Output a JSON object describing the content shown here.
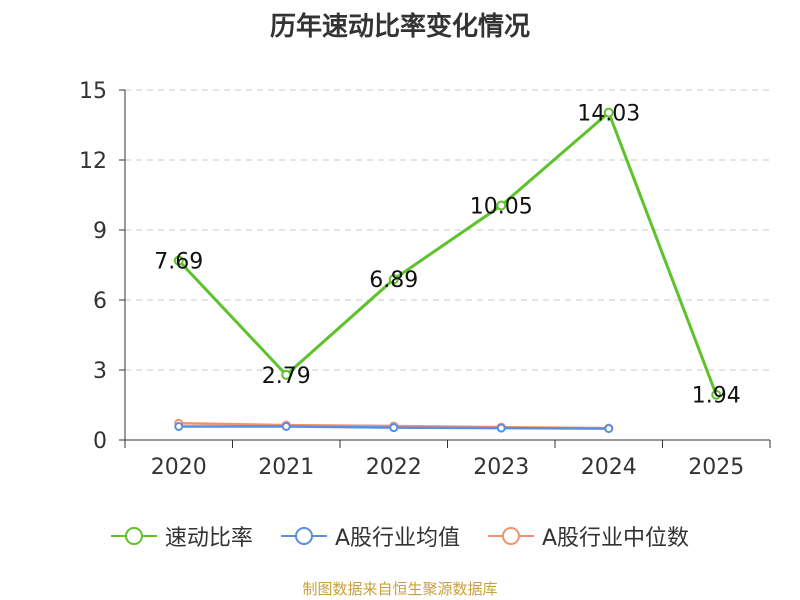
{
  "chart_data": {
    "type": "line",
    "title": "历年速动比率变化情况",
    "categories": [
      "2020",
      "2021",
      "2022",
      "2023",
      "2024",
      "2025"
    ],
    "y_ticks": [
      "0",
      "3",
      "6",
      "9",
      "12",
      "15"
    ],
    "ylim": [
      0,
      15
    ],
    "grid": true,
    "legend_position": "bottom",
    "series": [
      {
        "name": "速动比率",
        "color": "#5ec22c",
        "values": [
          7.69,
          2.79,
          6.89,
          10.05,
          14.03,
          1.94
        ],
        "labels": [
          "7.69",
          "2.79",
          "6.89",
          "10.05",
          "14.03",
          "1.94"
        ]
      },
      {
        "name": "A股行业均值",
        "color": "#5b8ee0",
        "values": [
          0.58,
          0.58,
          0.53,
          0.51,
          0.49,
          null
        ]
      },
      {
        "name": "A股行业中位数",
        "color": "#f3926a",
        "values": [
          0.72,
          0.64,
          0.6,
          0.55,
          0.51,
          null
        ]
      }
    ]
  },
  "footer": {
    "source": "制图数据来自恒生聚源数据库"
  }
}
